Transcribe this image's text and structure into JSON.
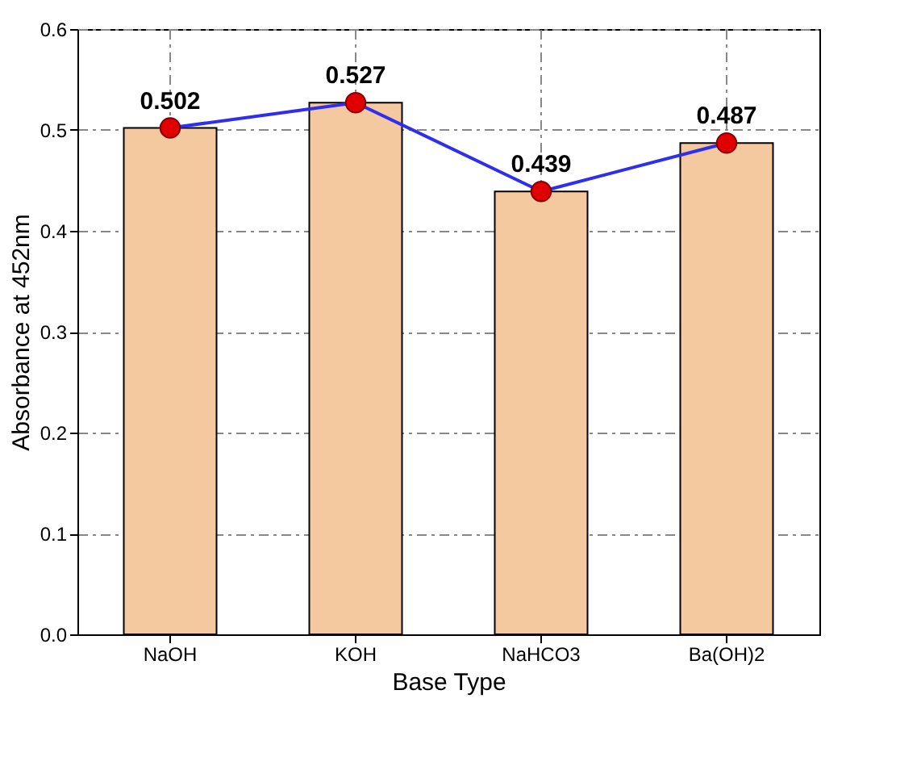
{
  "chart_data": {
    "type": "bar",
    "xlabel": "Base Type",
    "ylabel": "Absorbance at 452nm",
    "categories": [
      "NaOH",
      "KOH",
      "NaHCO3",
      "Ba(OH)2"
    ],
    "series": [
      {
        "color": "#f5c9a0",
        "values": [
          0.502,
          0.527,
          0.439,
          0.487
        ]
      },
      {
        "type": "line",
        "color": "#2e2ef0",
        "values": [
          0.502,
          0.527,
          0.439,
          0.487
        ],
        "value_labels": [
          "0.502",
          "0.527",
          "0.439",
          "0.487"
        ]
      }
    ],
    "ylim": [
      0,
      0.6
    ],
    "yticks": [
      {
        "value": 0,
        "label": "0.0"
      },
      0.1,
      0.2,
      0.3,
      0.4,
      0.5,
      0.6
    ],
    "grid": true,
    "marker": "circle"
  }
}
